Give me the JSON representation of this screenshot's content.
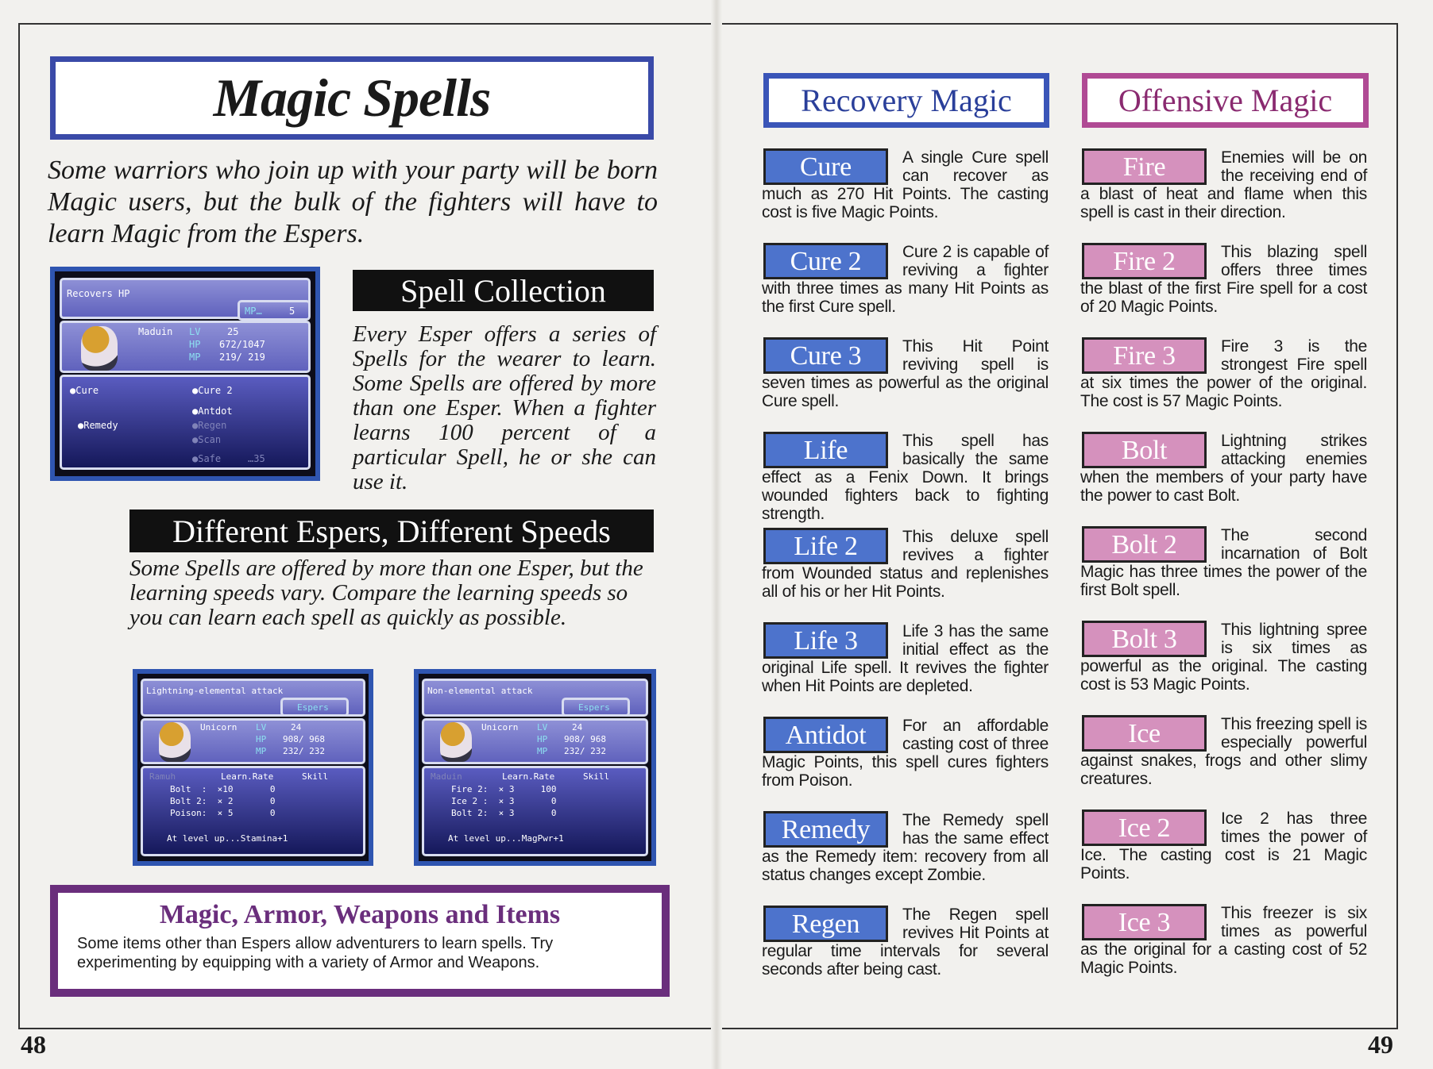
{
  "left": {
    "title": "Magic Spells",
    "intro": "Some warriors who join up with your party will be born Magic users, but the bulk of the fighters will have to learn Magic from the Espers.",
    "spell_collection": {
      "heading": "Spell Collection",
      "text": "Every Esper offers a series of Spells for the wearer to learn. Some Spells are offered by more than one Esper. When a fighter learns 100 percent of a particular Spell, he or she can use it."
    },
    "speeds": {
      "heading": "Different Espers, Different Speeds",
      "text": "Some Spells are offered by more than one Esper, but the learning speeds vary. Compare the learning speeds so you can learn each spell as quickly as possible."
    },
    "screen1": {
      "desc": "Recovers HP",
      "mp_label": "MP…",
      "mp_cost": "5",
      "name": "Maduin",
      "lv_label": "LV",
      "lv": "25",
      "hp_label": "HP",
      "hp": "672/1047",
      "mp2_label": "MP",
      "mp": "219/ 219",
      "spells": [
        "●Cure",
        "●Cure 2",
        "●Antdot",
        "●Remedy",
        "●Regen",
        "●Scan",
        "●Safe",
        "…35"
      ]
    },
    "screen2": {
      "desc": "Lightning-elemental attack",
      "tab": "Espers",
      "name": "Unicorn",
      "lv_label": "LV",
      "lv": "24",
      "hp_label": "HP",
      "hp": "908/ 968",
      "mp_label": "MP",
      "mp": "232/ 232",
      "esper": "Ramuh",
      "col1": "Learn.Rate",
      "col2": "Skill",
      "rows": [
        "Bolt  :  ×10       0",
        "Bolt 2:  × 2       0",
        "Poison:  × 5       0"
      ],
      "levelup": "At level up...Stamina+1"
    },
    "screen3": {
      "desc": "Non-elemental attack",
      "tab": "Espers",
      "name": "Unicorn",
      "lv_label": "LV",
      "lv": "24",
      "hp_label": "HP",
      "hp": "908/ 968",
      "mp_label": "MP",
      "mp": "232/ 232",
      "esper": "Maduin",
      "col1": "Learn.Rate",
      "col2": "Skill",
      "rows": [
        "Fire 2:  × 3     100",
        "Ice 2 :  × 3       0",
        "Bolt 2:  × 3       0"
      ],
      "levelup": "At level up...MagPwr+1"
    },
    "sidebar": {
      "heading": "Magic, Armor, Weapons and Items",
      "text": "Some items other than Espers allow adventurers to learn spells. Try experimenting by equipping with a variety of Armor and Weapons."
    },
    "page_number": "48"
  },
  "right": {
    "recovery": {
      "heading": "Recovery Magic",
      "entries": [
        {
          "name": "Cure",
          "text": "A single Cure spell can recover as much as 270 Hit Points. The casting cost is five Magic Points."
        },
        {
          "name": "Cure 2",
          "text": "Cure 2 is capable of reviving a fighter with three times as many Hit Points as the first Cure spell."
        },
        {
          "name": "Cure 3",
          "text": "This Hit Point reviving spell is seven times as powerful as the original Cure spell."
        },
        {
          "name": "Life",
          "text": "This spell has basically the same effect as a Fenix Down. It brings wounded fighters back to fighting strength."
        },
        {
          "name": "Life 2",
          "text": "This deluxe spell revives a fighter from Wounded status and replenishes all of his or her Hit Points."
        },
        {
          "name": "Life 3",
          "text": "Life 3 has the same initial effect as the original Life spell. It revives the fighter when Hit Points are depleted."
        },
        {
          "name": "Antidot",
          "text": "For an affordable casting cost of three Magic Points, this spell cures fighters from Poison."
        },
        {
          "name": "Remedy",
          "text": "The Remedy spell has the same effect as the Remedy item: recovery from all status changes except Zombie."
        },
        {
          "name": "Regen",
          "text": "The Regen spell revives Hit Points at regular time intervals for several seconds after being cast."
        }
      ]
    },
    "offensive": {
      "heading": "Offensive Magic",
      "entries": [
        {
          "name": "Fire",
          "text": "Enemies will be on the receiving end of a blast of heat and flame when this spell is cast in their direction."
        },
        {
          "name": "Fire 2",
          "text": "This blazing spell offers three times the blast of the first Fire spell for a cost of 20 Magic Points."
        },
        {
          "name": "Fire 3",
          "text": "Fire 3 is the strongest Fire spell at six times the power of the original. The cost is 57 Magic Points."
        },
        {
          "name": "Bolt",
          "text": "Lightning strikes attacking enemies when the members of your party have the power to cast Bolt."
        },
        {
          "name": "Bolt 2",
          "text": "The second incarnation of Bolt Magic has three times the power of the first Bolt spell."
        },
        {
          "name": "Bolt 3",
          "text": "This lightning spree is six times as powerful as the original. The casting cost is 53 Magic Points."
        },
        {
          "name": "Ice",
          "text": "This freezing spell is especially powerful against snakes, frogs and other slimy creatures."
        },
        {
          "name": "Ice 2",
          "text": "Ice 2 has three times the power of Ice. The casting cost is 21 Magic Points."
        },
        {
          "name": "Ice 3",
          "text": "This freezer is six times as powerful as the original for a casting cost of 52 Magic Points."
        }
      ]
    },
    "page_number": "49"
  },
  "colors": {
    "recovery": "#4d73cc",
    "offensive": "#d591bd",
    "title_border": "#3a4aa8",
    "sidebar_border": "#6a2e7c"
  }
}
